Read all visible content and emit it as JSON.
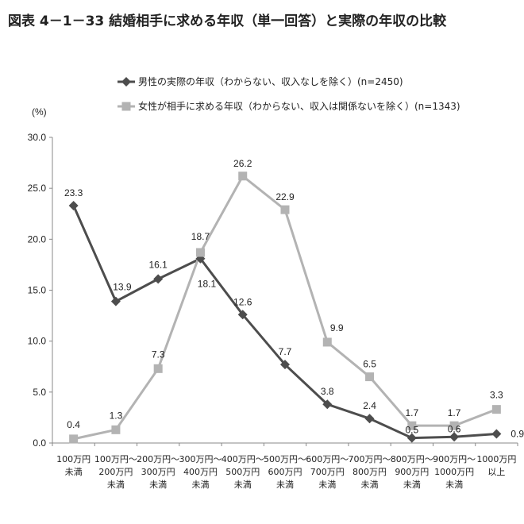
{
  "title": "図表 4－1－33 結婚相手に求める年収（単一回答）と実際の年収の比較",
  "chart_data": {
    "type": "line",
    "ylabel": "(%)",
    "ylim": [
      0,
      30
    ],
    "yticks": [
      "0.0",
      "5.0",
      "10.0",
      "15.0",
      "20.0",
      "25.0",
      "30.0"
    ],
    "ytick_values": [
      0,
      5,
      10,
      15,
      20,
      25,
      30
    ],
    "grid": false,
    "legend": "top",
    "categories": [
      [
        "100万円",
        "未満"
      ],
      [
        "100万円～",
        "200万円",
        "未満"
      ],
      [
        "200万円～",
        "300万円",
        "未満"
      ],
      [
        "300万円～",
        "400万円",
        "未満"
      ],
      [
        "400万円～",
        "500万円",
        "未満"
      ],
      [
        "500万円～",
        "600万円",
        "未満"
      ],
      [
        "600万円～",
        "700万円",
        "未満"
      ],
      [
        "700万円～",
        "800万円",
        "未満"
      ],
      [
        "800万円～",
        "900万円",
        "未満"
      ],
      [
        "900万円～",
        "1000万円",
        "未満"
      ],
      [
        "1000万円",
        "以上"
      ]
    ],
    "series": [
      {
        "name": "男性の実際の年収（わからない、収入なしを除く）(n=2450)",
        "color": "#4d4d4d",
        "marker": "diamond",
        "values": [
          23.3,
          13.9,
          16.1,
          18.1,
          12.6,
          7.7,
          3.8,
          2.4,
          0.5,
          0.6,
          0.9
        ],
        "labels": [
          "23.3",
          "13.9",
          "16.1",
          "18.1",
          "12.6",
          "7.7",
          "3.8",
          "2.4",
          "0.5",
          "0.6",
          "0.9"
        ]
      },
      {
        "name": "女性が相手に求める年収（わからない、収入は関係ないを除く）(n=1343)",
        "color": "#b3b3b3",
        "marker": "square",
        "values": [
          0.4,
          1.3,
          7.3,
          18.7,
          26.2,
          22.9,
          9.9,
          6.5,
          1.7,
          1.7,
          3.3
        ],
        "labels": [
          "0.4",
          "1.3",
          "7.3",
          "18.7",
          "26.2",
          "22.9",
          "9.9",
          "6.5",
          "1.7",
          "1.7",
          "3.3"
        ]
      }
    ]
  }
}
